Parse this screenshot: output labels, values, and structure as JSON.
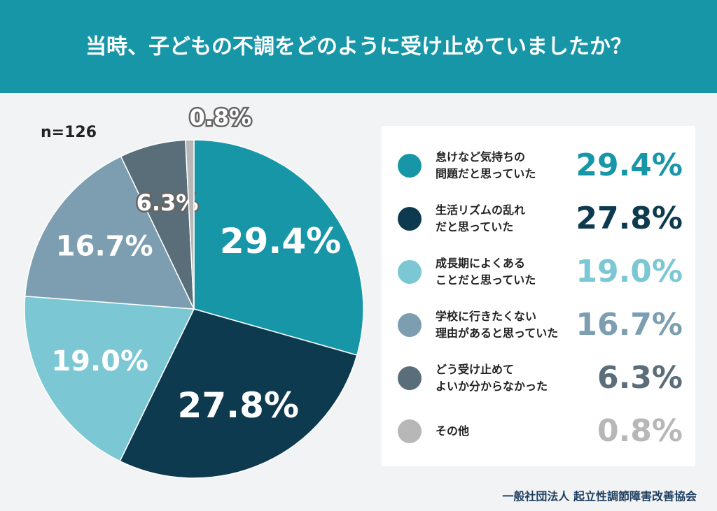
{
  "chart_data": {
    "type": "pie",
    "title": "当時、子どもの不調をどのように受け止めていましたか？",
    "subtitle": "n=126",
    "categories": [
      "怠けなど気持ちの\n問題だと思っていた",
      "生活リズムの乱れ\nだと思っていた",
      "成長期によくある\nことだと思っていた",
      "学校に行きたくない\n理由があると思っていた",
      "どう受け止めて\nよいか分からなかった",
      "その他"
    ],
    "values": [
      29.4,
      27.8,
      19.0,
      16.7,
      6.3,
      0.8
    ],
    "value_labels": [
      "29.4%",
      "27.8%",
      "19.0%",
      "16.7%",
      "6.3%",
      "0.8%"
    ],
    "colors": [
      "#1796a8",
      "#0e3a4f",
      "#7bc7d3",
      "#7c9eb0",
      "#5a6e79",
      "#b7b7b7"
    ],
    "footer": "一般社団法人 起立性調節障害改善協会"
  }
}
